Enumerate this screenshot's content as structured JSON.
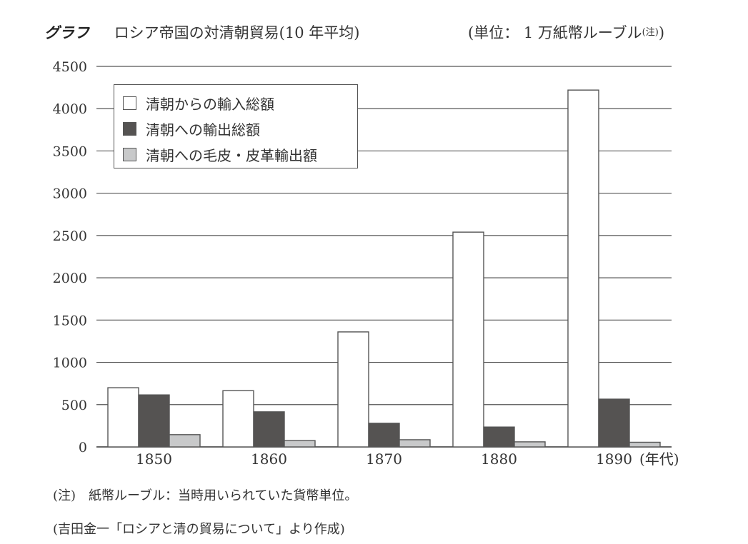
{
  "header": {
    "label": "グラフ",
    "title": "ロシア帝国の対清朝貿易(10 年平均)",
    "unit_prefix": "(単位： 1 万紙幣ルーブル",
    "unit_note": "(注)",
    "unit_suffix": ")"
  },
  "legend": {
    "items": [
      {
        "label": "清朝からの輸入総額",
        "color": "#ffffff"
      },
      {
        "label": "清朝への輸出総額",
        "color": "#555352"
      },
      {
        "label": "清朝への毛皮・皮革輸出額",
        "color": "#c8c9ca"
      }
    ]
  },
  "axis": {
    "x_unit_label": "(年代)"
  },
  "notes": {
    "note1": "(注)　紙幣ルーブル：当時用いられていた貨幣単位。",
    "source": "(吉田金一「ロシアと清の貿易について」より作成)"
  },
  "chart_data": {
    "type": "bar",
    "title": "ロシア帝国の対清朝貿易(10 年平均)",
    "subtitle": "(単位： 1 万紙幣ルーブル(注))",
    "xlabel": "(年代)",
    "ylabel": "1 万紙幣ルーブル",
    "categories": [
      "1850",
      "1860",
      "1870",
      "1880",
      "1890"
    ],
    "series": [
      {
        "name": "清朝からの輸入総額",
        "values": [
          700,
          665,
          1360,
          2540,
          4220
        ],
        "color": "#ffffff"
      },
      {
        "name": "清朝への輸出総額",
        "values": [
          615,
          415,
          280,
          235,
          565
        ],
        "color": "#555352"
      },
      {
        "name": "清朝への毛皮・皮革輸出額",
        "values": [
          145,
          75,
          85,
          60,
          55
        ],
        "color": "#c8c9ca"
      }
    ],
    "ylim": [
      0,
      4500
    ],
    "yticks": [
      0,
      500,
      1000,
      1500,
      2000,
      2500,
      3000,
      3500,
      4000,
      4500
    ],
    "grid": true,
    "legend_position": "upper-left"
  }
}
